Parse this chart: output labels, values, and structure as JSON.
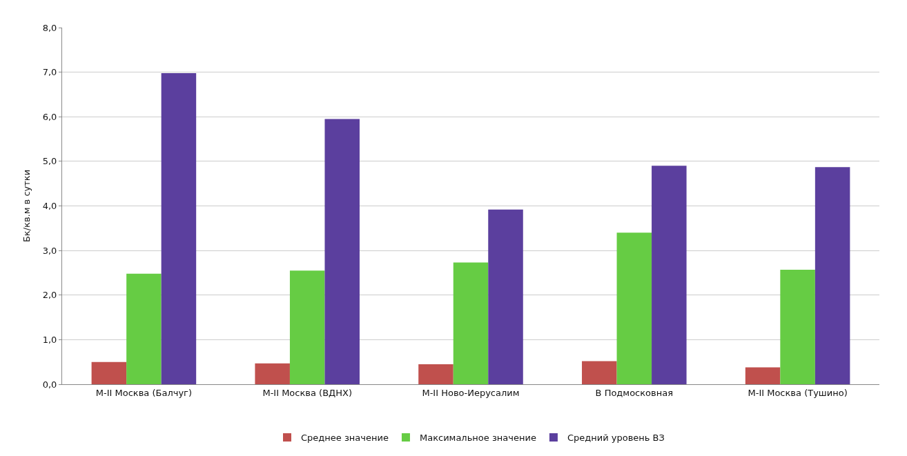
{
  "chart_data": {
    "type": "bar",
    "ylabel": "Бк/кв.м в сутки",
    "categories": [
      "М-II Москва (Балчуг)",
      "М-II Москва (ВДНХ)",
      "М-II Ново-Иерусалим",
      "В Подмосковная",
      "М-II Москва (Тушино)"
    ],
    "series": [
      {
        "name": "Среднее значение",
        "color": "#c0504d",
        "values": [
          0.5,
          0.47,
          0.45,
          0.52,
          0.38
        ]
      },
      {
        "name": "Максимальное значение",
        "color": "#66cc44",
        "values": [
          2.48,
          2.55,
          2.73,
          3.4,
          2.57
        ]
      },
      {
        "name": "Средний уровень ВЗ",
        "color": "#5b3f9e",
        "values": [
          6.98,
          5.95,
          3.92,
          4.9,
          4.87
        ]
      }
    ],
    "ylim": [
      0,
      8
    ],
    "yticks": [
      {
        "value": 0,
        "label": "0,0"
      },
      {
        "value": 1,
        "label": "1,0"
      },
      {
        "value": 2,
        "label": "2,0"
      },
      {
        "value": 3,
        "label": "3,0"
      },
      {
        "value": 4,
        "label": "4,0"
      },
      {
        "value": 5,
        "label": "5,0"
      },
      {
        "value": 6,
        "label": "6,0"
      },
      {
        "value": 7,
        "label": "7,0"
      },
      {
        "value": 8,
        "label": "8,0"
      }
    ],
    "grid": "y",
    "legend": "bottom"
  }
}
